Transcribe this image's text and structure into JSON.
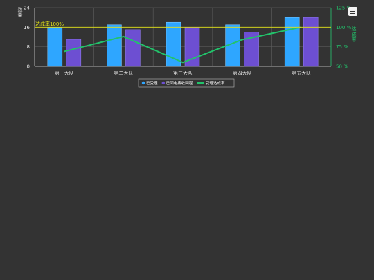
{
  "chart_data": {
    "type": "bar",
    "categories": [
      "第一大队",
      "第二大队",
      "第三大队",
      "第四大队",
      "第五大队"
    ],
    "series": [
      {
        "name": "已受理",
        "type": "bar",
        "axis": "left",
        "color": "#2ea6ff",
        "values": [
          16,
          17,
          18,
          17,
          20
        ]
      },
      {
        "name": "已回电接收回程",
        "type": "bar",
        "axis": "left",
        "color": "#6d4fd2",
        "values": [
          11,
          15,
          16,
          14,
          20
        ]
      },
      {
        "name": "受理达成率",
        "type": "line",
        "axis": "right",
        "color": "#22c36b",
        "values": [
          69,
          88,
          55,
          84,
          100
        ]
      }
    ],
    "ylabel_left": "数量",
    "ylabel_right": "达成率",
    "ylim_left": [
      0,
      24
    ],
    "yticks_left": [
      0,
      8,
      16,
      24
    ],
    "ylim_right": [
      50,
      125
    ],
    "yticks_right": [
      "50 %",
      "75 %",
      "100 %",
      "125 %"
    ],
    "reference_line": {
      "label": "达成率100%",
      "value": 100,
      "axis": "right",
      "color": "#e5e517"
    },
    "grid": true,
    "legend": "bottom-center"
  },
  "toolbar": {
    "menu_icon": "hamburger-menu-icon"
  }
}
